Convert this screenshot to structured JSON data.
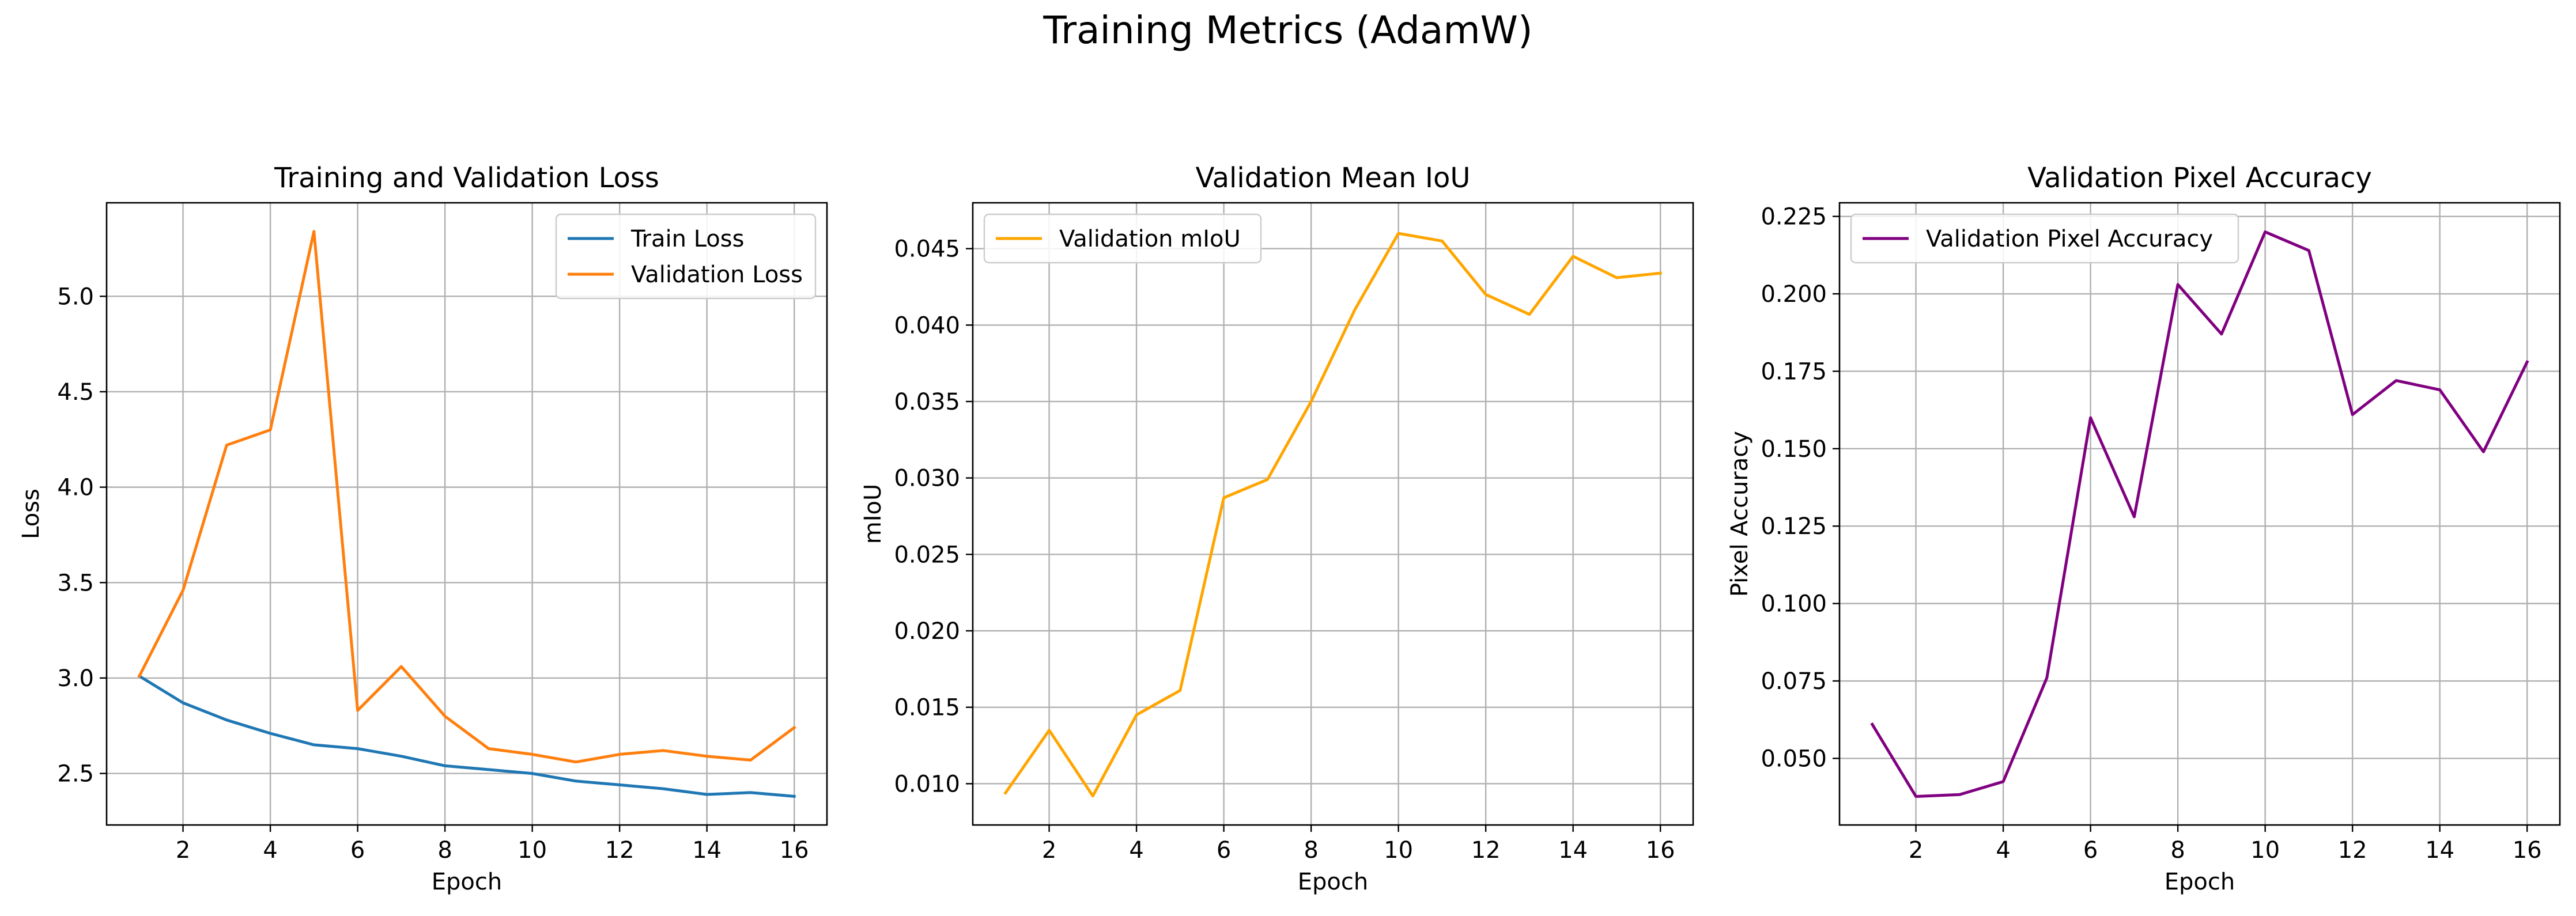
{
  "figure": {
    "suptitle": "Training Metrics (AdamW)"
  },
  "chart_data": [
    {
      "type": "line",
      "title": "Training and Validation Loss",
      "xlabel": "Epoch",
      "ylabel": "Loss",
      "x": [
        1,
        2,
        3,
        4,
        5,
        6,
        7,
        8,
        9,
        10,
        11,
        12,
        13,
        14,
        15,
        16
      ],
      "xlim": [
        0.25,
        16.75
      ],
      "ylim": [
        2.23,
        5.49
      ],
      "xticks": [
        2,
        4,
        6,
        8,
        10,
        12,
        14,
        16
      ],
      "yticks": [
        2.5,
        3.0,
        3.5,
        4.0,
        4.5,
        5.0
      ],
      "ytick_labels": [
        "2.5",
        "3.0",
        "3.5",
        "4.0",
        "4.5",
        "5.0"
      ],
      "grid": true,
      "legend_position": "upper right",
      "series": [
        {
          "name": "Train Loss",
          "color": "#1f77b4",
          "values": [
            3.01,
            2.87,
            2.78,
            2.71,
            2.65,
            2.63,
            2.59,
            2.54,
            2.52,
            2.5,
            2.46,
            2.44,
            2.42,
            2.39,
            2.4,
            2.38
          ]
        },
        {
          "name": "Validation Loss",
          "color": "#ff7f0e",
          "values": [
            3.01,
            3.46,
            4.22,
            4.3,
            5.34,
            2.83,
            3.06,
            2.8,
            2.63,
            2.6,
            2.56,
            2.6,
            2.62,
            2.59,
            2.57,
            2.74
          ]
        }
      ]
    },
    {
      "type": "line",
      "title": "Validation Mean IoU",
      "xlabel": "Epoch",
      "ylabel": "mIoU",
      "x": [
        1,
        2,
        3,
        4,
        5,
        6,
        7,
        8,
        9,
        10,
        11,
        12,
        13,
        14,
        15,
        16
      ],
      "xlim": [
        0.25,
        16.75
      ],
      "ylim": [
        0.0073,
        0.048
      ],
      "xticks": [
        2,
        4,
        6,
        8,
        10,
        12,
        14,
        16
      ],
      "yticks": [
        0.01,
        0.015,
        0.02,
        0.025,
        0.03,
        0.035,
        0.04,
        0.045
      ],
      "ytick_labels": [
        "0.010",
        "0.015",
        "0.020",
        "0.025",
        "0.030",
        "0.035",
        "0.040",
        "0.045"
      ],
      "grid": true,
      "legend_position": "upper left",
      "series": [
        {
          "name": "Validation mIoU",
          "color": "#ffa500",
          "values": [
            0.0094,
            0.0135,
            0.0092,
            0.0145,
            0.0161,
            0.0287,
            0.0299,
            0.035,
            0.041,
            0.046,
            0.0455,
            0.042,
            0.0407,
            0.0445,
            0.0431,
            0.0434
          ]
        }
      ]
    },
    {
      "type": "line",
      "title": "Validation Pixel Accuracy",
      "xlabel": "Epoch",
      "ylabel": "Pixel Accuracy",
      "x": [
        1,
        2,
        3,
        4,
        5,
        6,
        7,
        8,
        9,
        10,
        11,
        12,
        13,
        14,
        15,
        16
      ],
      "xlim": [
        0.25,
        16.75
      ],
      "ylim": [
        0.0285,
        0.2294
      ],
      "xticks": [
        2,
        4,
        6,
        8,
        10,
        12,
        14,
        16
      ],
      "yticks": [
        0.05,
        0.075,
        0.1,
        0.125,
        0.15,
        0.175,
        0.2,
        0.225
      ],
      "ytick_labels": [
        "0.050",
        "0.075",
        "0.100",
        "0.125",
        "0.150",
        "0.175",
        "0.200",
        "0.225"
      ],
      "grid": true,
      "legend_position": "upper left",
      "series": [
        {
          "name": "Validation Pixel Accuracy",
          "color": "#800080",
          "values": [
            0.061,
            0.0377,
            0.0383,
            0.0425,
            0.076,
            0.16,
            0.128,
            0.203,
            0.187,
            0.22,
            0.214,
            0.161,
            0.172,
            0.169,
            0.149,
            0.178
          ]
        }
      ]
    }
  ]
}
